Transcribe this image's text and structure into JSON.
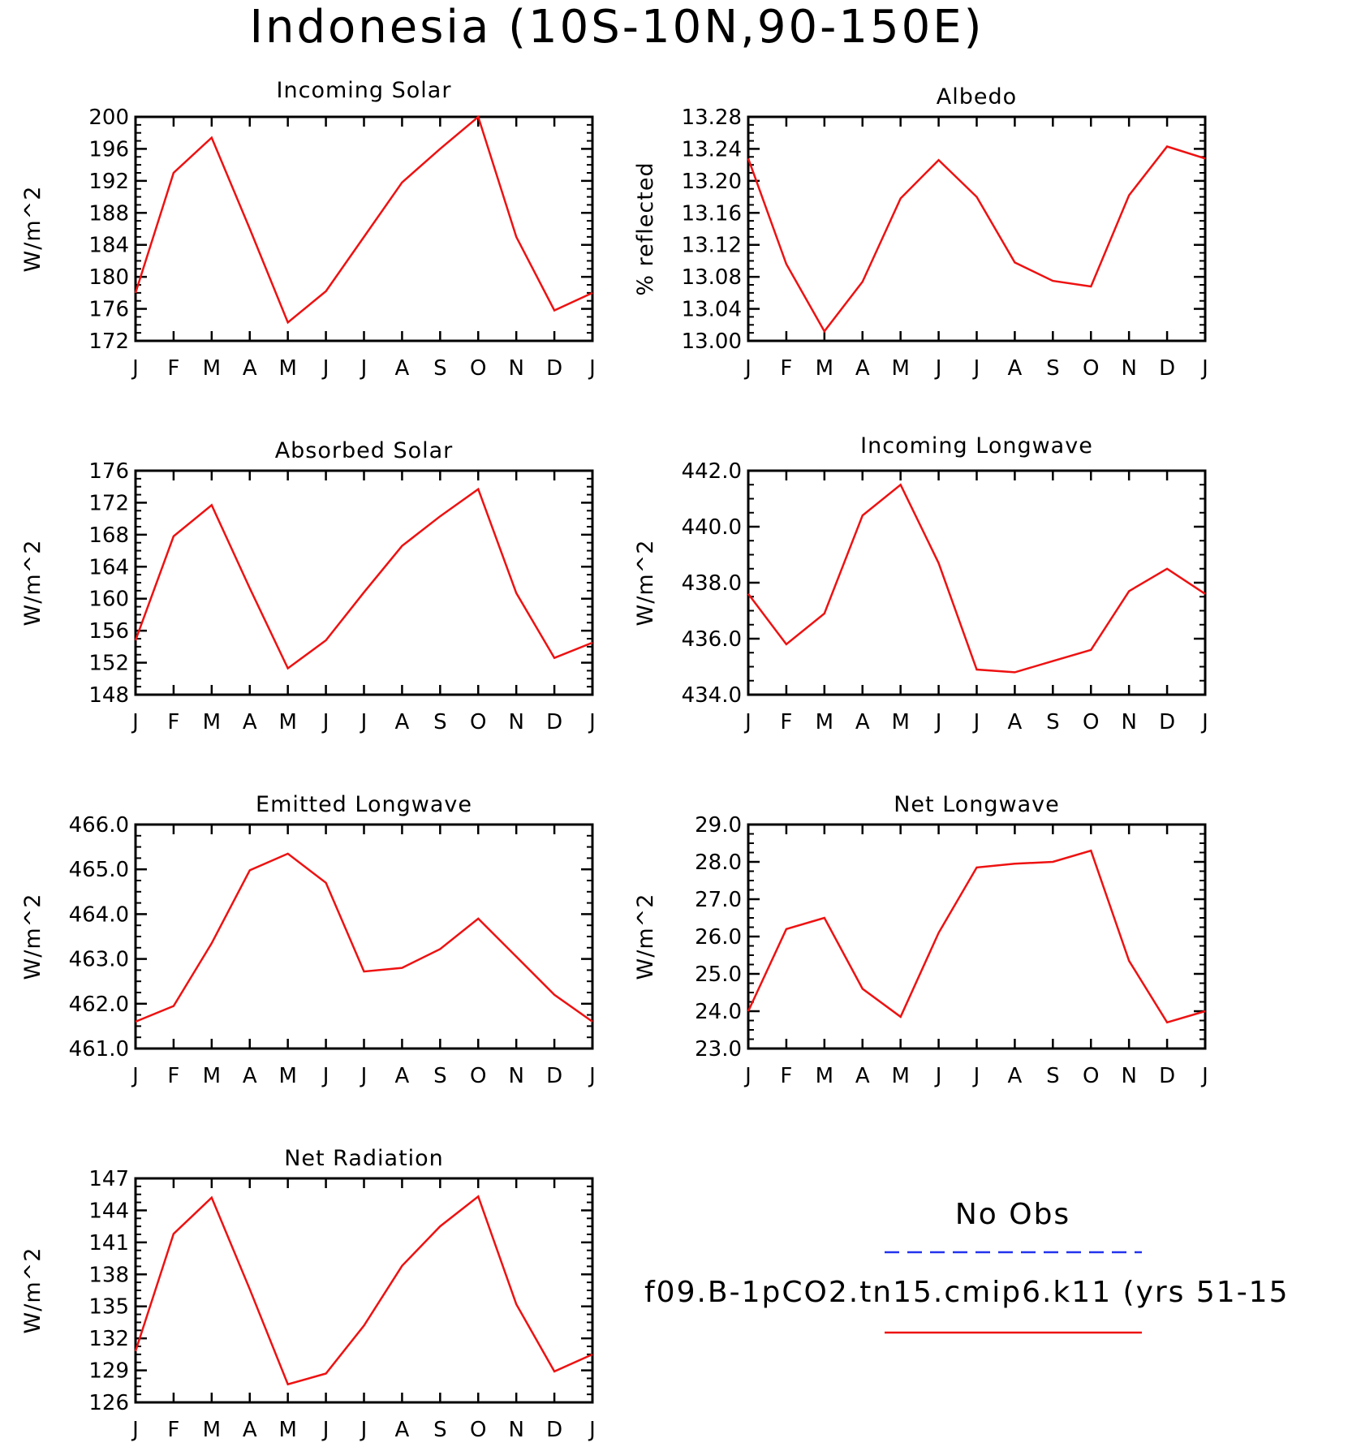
{
  "figure_title": "Indonesia (10S-10N,90-150E)",
  "legend": {
    "items": [
      {
        "label": "No Obs",
        "color": "#2233ee",
        "dash": true
      },
      {
        "label": "f09.B-1pCO2.tn15.cmip6.k11 (yrs 51-15",
        "color": "#ee1111",
        "dash": false
      }
    ]
  },
  "colors": {
    "model": "#ee1111",
    "obs": "#2233ee",
    "axis": "#000000"
  },
  "chart_data": [
    {
      "type": "line",
      "title": "Incoming Solar",
      "ylabel": "W/m^2",
      "categories": [
        "J",
        "F",
        "M",
        "A",
        "M",
        "J",
        "J",
        "A",
        "S",
        "O",
        "N",
        "D",
        "J"
      ],
      "ylim": [
        172,
        200
      ],
      "yticks": [
        172,
        176,
        180,
        184,
        188,
        192,
        196,
        200
      ],
      "ytick_labels": [
        "172",
        "176",
        "180",
        "184",
        "188",
        "192",
        "196",
        "200"
      ],
      "series": [
        {
          "values": [
            178.0,
            193.0,
            197.4,
            186.0,
            174.3,
            178.2,
            185.0,
            191.8,
            196.0,
            200.0,
            185.0,
            175.8,
            178.0
          ]
        }
      ]
    },
    {
      "type": "line",
      "title": "Albedo",
      "ylabel": "% reflected",
      "categories": [
        "J",
        "F",
        "M",
        "A",
        "M",
        "J",
        "J",
        "A",
        "S",
        "O",
        "N",
        "D",
        "J"
      ],
      "ylim": [
        13.0,
        13.28
      ],
      "yticks": [
        13.0,
        13.04,
        13.08,
        13.12,
        13.16,
        13.2,
        13.24,
        13.28
      ],
      "ytick_labels": [
        "13.00",
        "13.04",
        "13.08",
        "13.12",
        "13.16",
        "13.20",
        "13.24",
        "13.28"
      ],
      "series": [
        {
          "values": [
            13.228,
            13.096,
            13.012,
            13.074,
            13.178,
            13.226,
            13.18,
            13.098,
            13.075,
            13.068,
            13.182,
            13.243,
            13.228
          ]
        }
      ]
    },
    {
      "type": "line",
      "title": "Absorbed Solar",
      "ylabel": "W/m^2",
      "categories": [
        "J",
        "F",
        "M",
        "A",
        "M",
        "J",
        "J",
        "A",
        "S",
        "O",
        "N",
        "D",
        "J"
      ],
      "ylim": [
        148,
        176
      ],
      "yticks": [
        148,
        152,
        156,
        160,
        164,
        168,
        172,
        176
      ],
      "ytick_labels": [
        "148",
        "152",
        "156",
        "160",
        "164",
        "168",
        "172",
        "176"
      ],
      "series": [
        {
          "values": [
            154.8,
            167.8,
            171.7,
            161.3,
            151.3,
            154.8,
            160.8,
            166.6,
            170.3,
            173.7,
            160.7,
            152.6,
            154.5
          ]
        }
      ]
    },
    {
      "type": "line",
      "title": "Incoming Longwave",
      "ylabel": "W/m^2",
      "categories": [
        "J",
        "F",
        "M",
        "A",
        "M",
        "J",
        "J",
        "A",
        "S",
        "O",
        "N",
        "D",
        "J"
      ],
      "ylim": [
        434.0,
        442.0
      ],
      "yticks": [
        434.0,
        436.0,
        438.0,
        440.0,
        442.0
      ],
      "ytick_labels": [
        "434.0",
        "436.0",
        "438.0",
        "440.0",
        "442.0"
      ],
      "series": [
        {
          "values": [
            437.6,
            435.8,
            436.9,
            440.4,
            441.5,
            438.7,
            434.9,
            434.8,
            435.2,
            435.6,
            437.7,
            438.5,
            437.6
          ]
        }
      ]
    },
    {
      "type": "line",
      "title": "Emitted Longwave",
      "ylabel": "W/m^2",
      "categories": [
        "J",
        "F",
        "M",
        "A",
        "M",
        "J",
        "J",
        "A",
        "S",
        "O",
        "N",
        "D",
        "J"
      ],
      "ylim": [
        461.0,
        466.0
      ],
      "yticks": [
        461.0,
        462.0,
        463.0,
        464.0,
        465.0,
        466.0
      ],
      "ytick_labels": [
        "461.0",
        "462.0",
        "463.0",
        "464.0",
        "465.0",
        "466.0"
      ],
      "series": [
        {
          "values": [
            461.6,
            461.95,
            463.35,
            464.98,
            465.35,
            464.7,
            462.72,
            462.8,
            463.22,
            463.9,
            463.05,
            462.2,
            461.6
          ]
        }
      ]
    },
    {
      "type": "line",
      "title": "Net Longwave",
      "ylabel": "W/m^2",
      "categories": [
        "J",
        "F",
        "M",
        "A",
        "M",
        "J",
        "J",
        "A",
        "S",
        "O",
        "N",
        "D",
        "J"
      ],
      "ylim": [
        23.0,
        29.0
      ],
      "yticks": [
        23.0,
        24.0,
        25.0,
        26.0,
        27.0,
        28.0,
        29.0
      ],
      "ytick_labels": [
        "23.0",
        "24.0",
        "25.0",
        "26.0",
        "27.0",
        "28.0",
        "29.0"
      ],
      "series": [
        {
          "values": [
            24.0,
            26.2,
            26.5,
            24.6,
            23.85,
            26.1,
            27.85,
            27.95,
            28.0,
            28.3,
            25.35,
            23.7,
            24.0
          ]
        }
      ]
    },
    {
      "type": "line",
      "title": "Net Radiation",
      "ylabel": "W/m^2",
      "categories": [
        "J",
        "F",
        "M",
        "A",
        "M",
        "J",
        "J",
        "A",
        "S",
        "O",
        "N",
        "D",
        "J"
      ],
      "ylim": [
        126,
        147
      ],
      "yticks": [
        126,
        129,
        132,
        135,
        138,
        141,
        144,
        147
      ],
      "ytick_labels": [
        "126",
        "129",
        "132",
        "135",
        "138",
        "141",
        "144",
        "147"
      ],
      "series": [
        {
          "values": [
            130.8,
            141.8,
            145.2,
            136.6,
            127.7,
            128.7,
            133.2,
            138.8,
            142.5,
            145.3,
            135.2,
            128.9,
            130.5
          ]
        }
      ]
    }
  ]
}
